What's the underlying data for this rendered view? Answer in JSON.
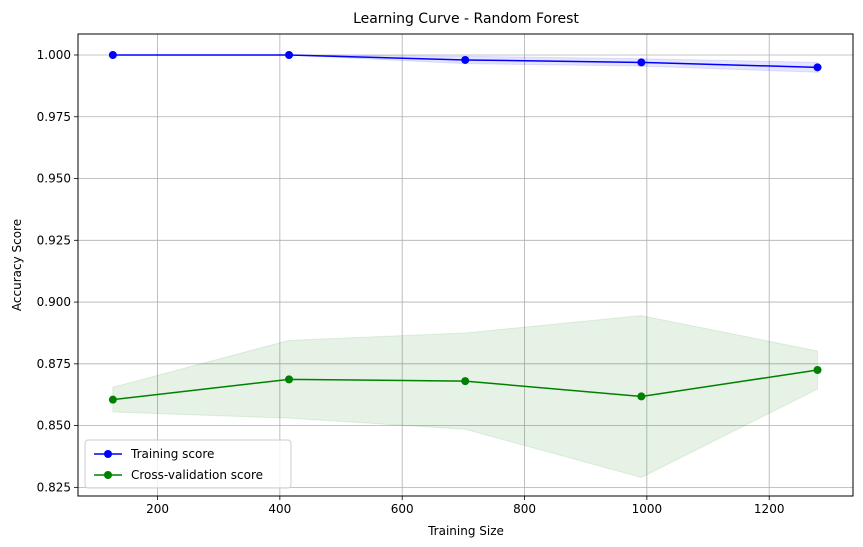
{
  "chart_data": {
    "type": "line",
    "title": "Learning Curve - Random Forest",
    "xlabel": "Training Size",
    "ylabel": "Accuracy Score",
    "xlim": [
      70,
      1337
    ],
    "ylim": [
      0.8215,
      1.0085
    ],
    "xticks": [
      200,
      400,
      600,
      800,
      1000,
      1200
    ],
    "xtick_labels": [
      "200",
      "400",
      "600",
      "800",
      "1000",
      "1200"
    ],
    "yticks": [
      0.825,
      0.85,
      0.875,
      0.9,
      0.925,
      0.95,
      0.975,
      1.0
    ],
    "ytick_labels": [
      "0.825",
      "0.850",
      "0.875",
      "0.900",
      "0.925",
      "0.950",
      "0.975",
      "1.000"
    ],
    "grid": true,
    "legend_position": "lower-left",
    "x": [
      127,
      415,
      703,
      991,
      1279
    ],
    "series": [
      {
        "name": "Training score",
        "color": "#0000ff",
        "marker": "circle",
        "values": [
          1.0,
          1.0,
          0.998,
          0.997,
          0.995
        ],
        "band_lower": [
          1.0,
          1.0,
          0.9965,
          0.9955,
          0.993
        ],
        "band_upper": [
          1.0,
          1.0,
          0.9995,
          0.9985,
          0.997
        ],
        "band_color": "#0000ff"
      },
      {
        "name": "Cross-validation score",
        "color": "#008000",
        "marker": "circle",
        "values": [
          0.8605,
          0.8687,
          0.868,
          0.8618,
          0.8725
        ],
        "band_lower": [
          0.8555,
          0.853,
          0.8485,
          0.829,
          0.8648
        ],
        "band_upper": [
          0.8655,
          0.8845,
          0.8875,
          0.8945,
          0.8802
        ],
        "band_color": "#008000"
      }
    ]
  }
}
